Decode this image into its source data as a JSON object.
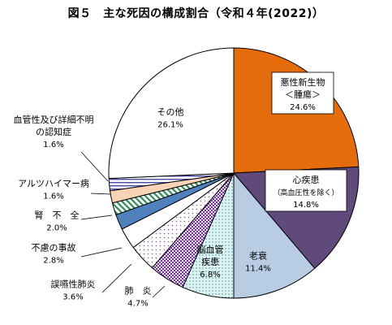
{
  "chart_data": {
    "type": "pie",
    "title": "図５　主な死因の構成割合（令和４年(2022)）",
    "slices": [
      {
        "label": "悪性新生物",
        "sublabel": "＜腫瘍＞",
        "value": 24.6,
        "value_label": "24.6%",
        "color": "#E46C0A",
        "pattern": "solid"
      },
      {
        "label": "心疾患",
        "sublabel": "（高血圧性を除く）",
        "value": 14.8,
        "value_label": "14.8%",
        "color": "#604A7B",
        "pattern": "solid"
      },
      {
        "label": "老衰",
        "sublabel": "",
        "value": 11.4,
        "value_label": "11.4%",
        "color": "#B8CCE4",
        "pattern": "solid"
      },
      {
        "label": "脳血管",
        "sublabel": "疾患",
        "value": 6.8,
        "value_label": "6.8%",
        "color": "#DDF3F3",
        "pattern": "dots"
      },
      {
        "label": "肺　炎",
        "sublabel": "",
        "value": 4.7,
        "value_label": "4.7%",
        "color": "#7030A0",
        "pattern": "checker"
      },
      {
        "label": "誤嚥性肺炎",
        "sublabel": "",
        "value": 3.6,
        "value_label": "3.6%",
        "color": "#ffffff",
        "pattern": "sparse-dots"
      },
      {
        "label": "不慮の事故",
        "sublabel": "",
        "value": 2.8,
        "value_label": "2.8%",
        "color": "#ffffff",
        "pattern": "solid"
      },
      {
        "label": "腎　不　全",
        "sublabel": "",
        "value": 2.0,
        "value_label": "2.0%",
        "color": "#4F81BD",
        "pattern": "solid"
      },
      {
        "label": "",
        "sublabel": "",
        "value": 1.6,
        "value_label": "",
        "color": "#2E8B57",
        "pattern": "diagonal"
      },
      {
        "label": "アルツハイマー病",
        "sublabel": "",
        "value": 1.6,
        "value_label": "1.6%",
        "color": "#F9D3B8",
        "pattern": "solid"
      },
      {
        "label": "血管性及び詳細不明",
        "sublabel": "の認知症",
        "value": 1.6,
        "value_label": "1.6%",
        "color": "#ffffff",
        "pattern": "lines"
      },
      {
        "label": "その他",
        "sublabel": "",
        "value": 26.1,
        "value_label": "26.1%",
        "color": "#ffffff",
        "pattern": "solid"
      }
    ]
  }
}
